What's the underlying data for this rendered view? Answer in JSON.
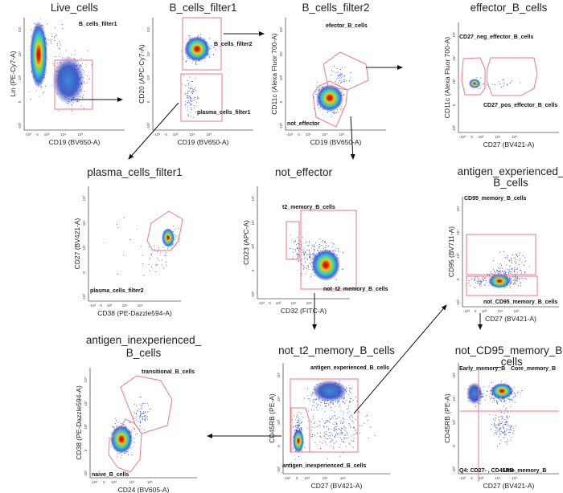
{
  "x_ticks": [
    "-10³",
    "0",
    "10³",
    "10⁴",
    "10⁵"
  ],
  "y_ticks": [
    "-10³",
    "0",
    "10³",
    "10⁴",
    "10⁵"
  ],
  "colors": {
    "gate": "#e87a80",
    "density_high": "#c0140c",
    "density_low": "#2a2ab0"
  },
  "plots": [
    {
      "title": [
        "Live_cells"
      ],
      "x_label": "CD19 (BV650-A)",
      "y_label": "Lin (PE-Cy7-A)",
      "gate_labels": [
        "B_cells_filter1"
      ]
    },
    {
      "title": [
        "B_cells_filter1"
      ],
      "x_label": "CD19 (BV650-A)",
      "y_label": "CD20 (APC-Cy7-A)",
      "gate_labels": [
        "B_cells_filter2",
        "plasma_cells_filter1"
      ]
    },
    {
      "title": [
        "B_cells_filter2"
      ],
      "x_label": "CD19 (BV650-A)",
      "y_label": "CD11c (Alexa Fluor 700-A)",
      "gate_labels": [
        "efector_B_cells",
        "not_effector"
      ]
    },
    {
      "title": [
        "effector_B_cells"
      ],
      "x_label": "CD27 (BV421-A)",
      "y_label": "CD11c (Alexa Fluor 700-A)",
      "gate_labels": [
        "CD27_neg_effector_B_cells",
        "CD27_pos_effector_B_cells"
      ]
    },
    {
      "title": [
        "plasma_cells_filter1"
      ],
      "x_label": "CD38 (PE-Dazzle594-A)",
      "y_label": "CD27 (BV421-A)",
      "gate_labels": [
        "plasma_cells_filter2"
      ]
    },
    {
      "title": [
        "not_effector"
      ],
      "x_label": "CD32 (FITC-A)",
      "y_label": "CD23 (APC-A)",
      "gate_labels": [
        "t2_memory_B_cells",
        "not_t2_memory_B_cells"
      ]
    },
    {
      "title": [
        "antigen_experienced_",
        "B_cells"
      ],
      "x_label": "CD27 (BV421-A)",
      "y_label": "CD95 (BV711-A)",
      "gate_labels": [
        "CD95_memory_B_cells",
        "not_CD95_memory_B_cells"
      ]
    },
    {
      "title": [
        "antigen_inexperienced_",
        "B_cells"
      ],
      "x_label": "CD24 (BV605-A)",
      "y_label": "CD38 (PE-Dazzle594-A)",
      "gate_labels": [
        "transitional_B_cells",
        "naive_B_cells"
      ]
    },
    {
      "title": [
        "not_t2_memory_B_cells"
      ],
      "x_label": "CD27 (BV421-A)",
      "y_label": "CD45RB (PE-A)",
      "gate_labels": [
        "antigen_experienced_B_cells",
        "antigen_inexperienced_B_cells"
      ]
    },
    {
      "title": [
        "not_CD95_memory_B",
        "_cells"
      ],
      "x_label": "CD27 (BV421-A)",
      "y_label": "CD45RB (PE-A)",
      "gate_labels": [
        "Early_memory_B",
        "Core_memory_B",
        "Q4: CD27- , CD45RB-",
        "Late_memory_B"
      ]
    }
  ]
}
